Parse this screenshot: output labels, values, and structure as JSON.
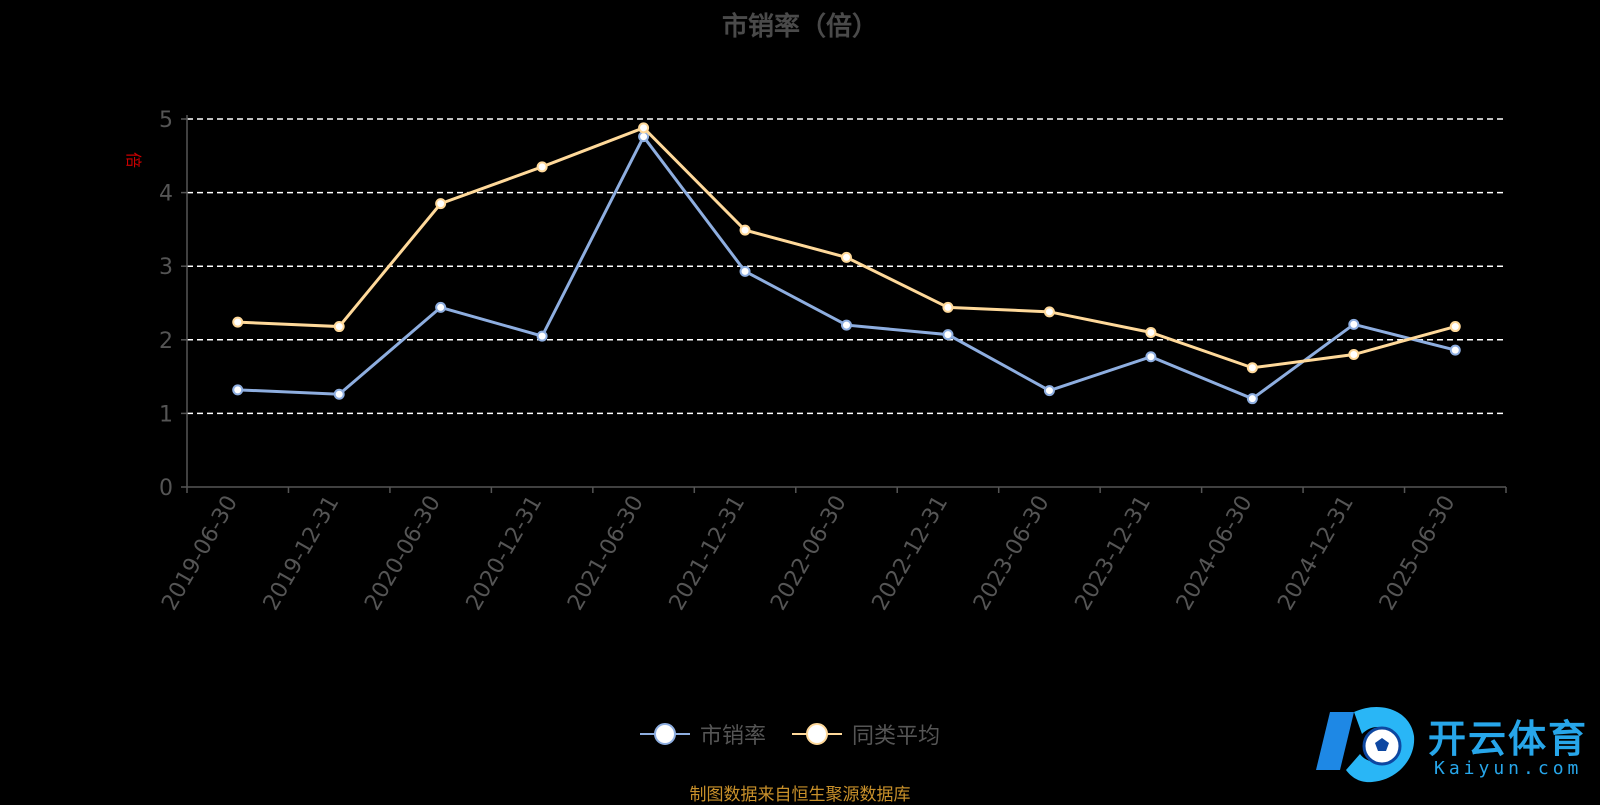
{
  "title": "市销率（倍）",
  "ylabel": "倍",
  "source": "制图数据来自恒生聚源数据库",
  "logo": {
    "text": "开云体育",
    "sub": "Kaiyun.com"
  },
  "colors": {
    "series1": "#8eaee0",
    "series2": "#ffd99a",
    "axis": "#555555",
    "grid": "#ffffff",
    "ylabel": "#cc0000",
    "source": "#c8902a"
  },
  "chart_data": {
    "type": "line",
    "title": "市销率（倍）",
    "xlabel": "",
    "ylabel": "倍",
    "ylim": [
      0,
      5
    ],
    "yticks": [
      0,
      1,
      2,
      3,
      4,
      5
    ],
    "grid": true,
    "legend_position": "bottom",
    "categories": [
      "2019-06-30",
      "2019-12-31",
      "2020-06-30",
      "2020-12-31",
      "2021-06-30",
      "2021-12-31",
      "2022-06-30",
      "2022-12-31",
      "2023-06-30",
      "2023-12-31",
      "2024-06-30",
      "2024-12-31",
      "2025-06-30"
    ],
    "series": [
      {
        "name": "市销率",
        "values": [
          1.32,
          1.26,
          2.44,
          2.05,
          4.76,
          2.93,
          2.2,
          2.07,
          1.31,
          1.77,
          1.2,
          2.21,
          1.86
        ]
      },
      {
        "name": "同类平均",
        "values": [
          2.24,
          2.18,
          3.85,
          4.35,
          4.88,
          3.49,
          3.12,
          2.44,
          2.38,
          2.1,
          1.62,
          1.8,
          2.18
        ]
      }
    ]
  }
}
